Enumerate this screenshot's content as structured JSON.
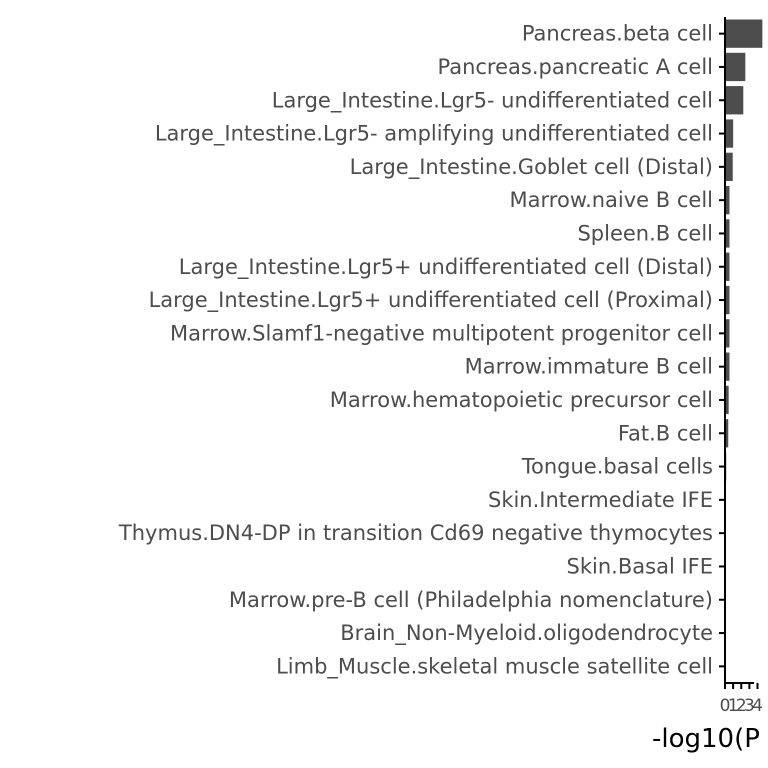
{
  "chart_data": {
    "type": "bar",
    "orientation": "horizontal",
    "categories": [
      "Pancreas.beta cell",
      "Pancreas.pancreatic A cell",
      "Large_Intestine.Lgr5- undifferentiated cell",
      "Large_Intestine.Lgr5- amplifying undifferentiated cell",
      "Large_Intestine.Goblet cell (Distal)",
      "Marrow.naive B cell",
      "Spleen.B cell",
      "Large_Intestine.Lgr5+ undifferentiated cell (Distal)",
      "Large_Intestine.Lgr5+ undifferentiated cell (Proximal)",
      "Marrow.Slamf1-negative multipotent progenitor cell",
      "Marrow.immature B cell",
      "Marrow.hematopoietic precursor cell",
      "Fat.B cell",
      "Tongue.basal cells",
      "Skin.Intermediate IFE",
      "Thymus.DN4-DP in transition Cd69 negative thymocytes",
      "Skin.Basal IFE",
      "Marrow.pre-B cell (Philadelphia nomenclature)",
      "Brain_Non-Myeloid.oligodendrocyte",
      "Limb_Muscle.skeletal muscle satellite cell"
    ],
    "values": [
      4.6,
      2.5,
      2.25,
      1.0,
      0.95,
      0.55,
      0.55,
      0.55,
      0.55,
      0.55,
      0.55,
      0.45,
      0.4,
      0.15,
      0.12,
      0.12,
      0.1,
      0.08,
      0.06,
      0.05
    ],
    "xlim": [
      0,
      4.8
    ],
    "xticks": [
      0,
      1,
      2,
      3,
      4
    ],
    "xtick_labels": [
      "0",
      "1",
      "2",
      "3",
      "4"
    ],
    "xlabel": "-log10(P",
    "ylabel": "",
    "bar_color": "#4d4d4d",
    "axis_color": "#000000",
    "grid": false
  }
}
